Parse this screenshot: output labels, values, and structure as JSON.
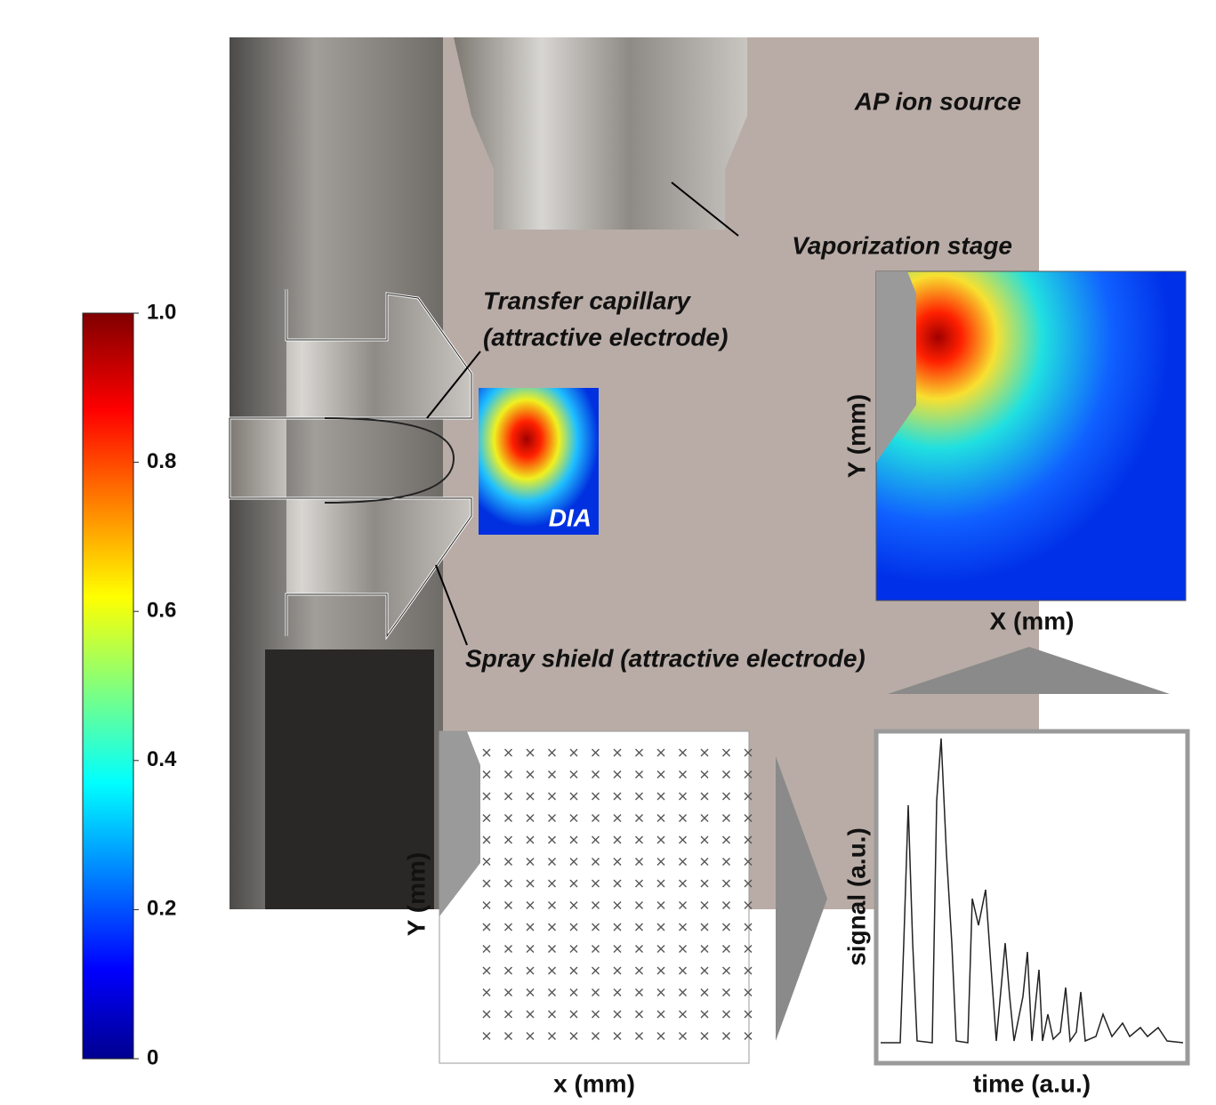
{
  "labels": {
    "ap_ion_source": "AP ion source",
    "vaporization_stage": "Vaporization stage",
    "transfer_capillary": "Transfer capillary",
    "transfer_capillary_note": "(attractive electrode)",
    "spray_shield": "Spray shield (attractive electrode)",
    "dia": "DIA"
  },
  "heatmap_axes": {
    "y": "Y (mm)",
    "x": "X (mm)"
  },
  "grid_axes": {
    "y": "Y (mm)",
    "x": "x (mm)"
  },
  "signal_axes": {
    "y": "signal (a.u.)",
    "x": "time (a.u.)"
  },
  "colorbar": {
    "range": [
      0,
      1
    ],
    "ticks": [
      0,
      0.2,
      0.4,
      0.6,
      0.8,
      {
        "value": 1,
        "label": "1.0"
      }
    ]
  }
}
